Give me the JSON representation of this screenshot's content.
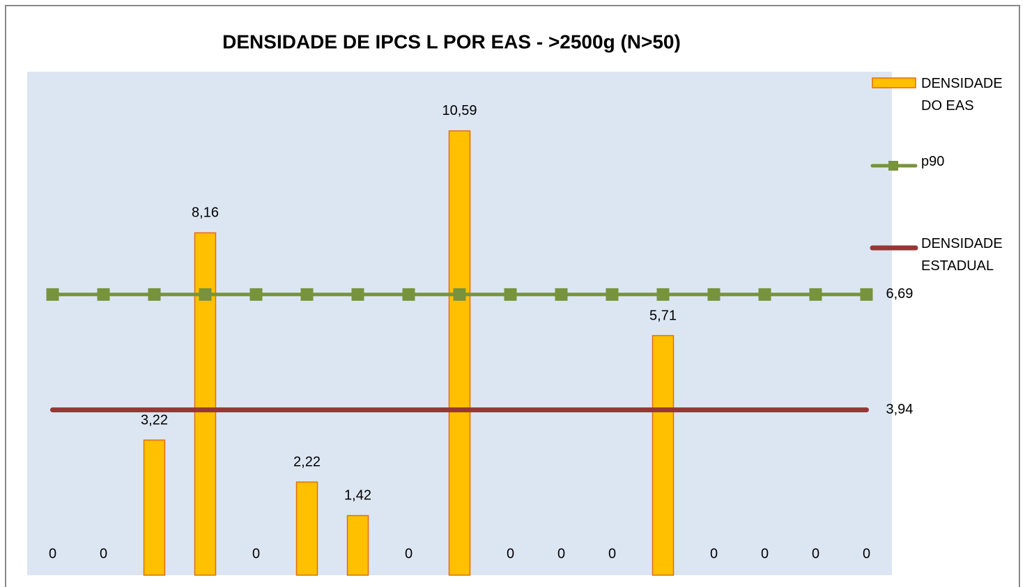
{
  "chart_data": {
    "type": "bar",
    "title": "DENSIDADE DE IPCS L  POR EAS - >2500g (N>50)",
    "categories": [
      null,
      null,
      null,
      null,
      null,
      null,
      null,
      null,
      null,
      null,
      null,
      null,
      null,
      null,
      null,
      null,
      null
    ],
    "series": [
      {
        "name": "DENSIDADE DO EAS",
        "type": "bar",
        "color": "#ffc000",
        "values": [
          0,
          0,
          3.22,
          8.16,
          0,
          2.22,
          1.42,
          0,
          10.59,
          0,
          0,
          0,
          5.71,
          0,
          0,
          0,
          0
        ],
        "value_labels": [
          "0",
          "0",
          "3,22",
          "8,16",
          "0",
          "2,22",
          "1,42",
          "0",
          "10,59",
          "0",
          "0",
          "0",
          "5,71",
          "0",
          "0",
          "0",
          "0"
        ]
      },
      {
        "name": "p90",
        "type": "line",
        "marker": "square",
        "color": "#77933c",
        "values": [
          6.69,
          6.69,
          6.69,
          6.69,
          6.69,
          6.69,
          6.69,
          6.69,
          6.69,
          6.69,
          6.69,
          6.69,
          6.69,
          6.69,
          6.69,
          6.69,
          6.69
        ],
        "label": "6,69"
      },
      {
        "name": "DENSIDADE ESTADUAL",
        "type": "line",
        "color": "#953735",
        "values": [
          3.94,
          3.94,
          3.94,
          3.94,
          3.94,
          3.94,
          3.94,
          3.94,
          3.94,
          3.94,
          3.94,
          3.94,
          3.94,
          3.94,
          3.94,
          3.94,
          3.94
        ],
        "label": "3,94"
      }
    ],
    "ylim": [
      0,
      12
    ],
    "legend": "right"
  }
}
